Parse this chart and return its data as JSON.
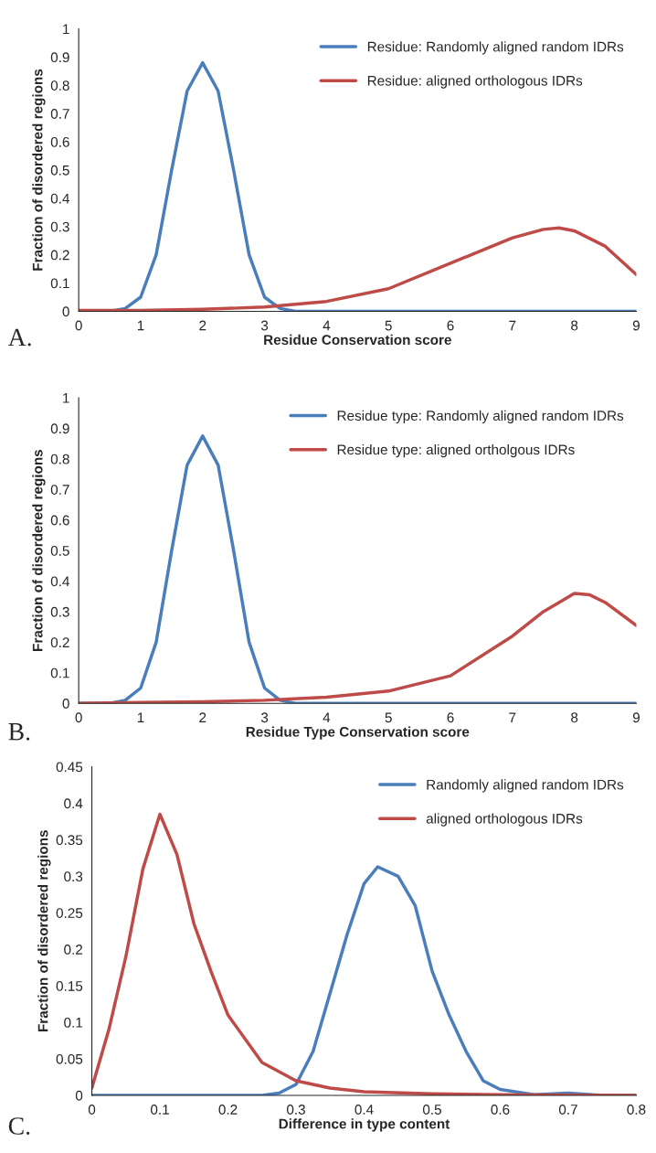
{
  "chart_data": [
    {
      "type": "line",
      "xlabel": "Residue Conservation score",
      "ylabel": "Fraction of disordered regions",
      "annotations": [
        "A."
      ],
      "xlim": [
        0,
        9
      ],
      "xticks": [
        0,
        1,
        2,
        3,
        4,
        5,
        6,
        7,
        8,
        9
      ],
      "ylim": [
        0,
        1
      ],
      "yticks": [
        0,
        0.1,
        0.2,
        0.3,
        0.4,
        0.5,
        0.6,
        0.7,
        0.8,
        0.9,
        1
      ],
      "legend": "top right",
      "grid": false,
      "marker": "none",
      "line_style": "solid",
      "series": [
        {
          "name": "Residue: Randomly aligned random IDRs",
          "color": "#4a7ebb",
          "x": [
            0,
            0.5,
            0.75,
            1,
            1.25,
            1.5,
            1.75,
            2,
            2.25,
            2.5,
            2.75,
            3,
            3.25,
            3.5,
            4,
            5,
            6,
            7,
            8,
            9
          ],
          "values": [
            0,
            0,
            0.01,
            0.05,
            0.2,
            0.5,
            0.78,
            0.88,
            0.78,
            0.5,
            0.2,
            0.05,
            0.01,
            0,
            0,
            0,
            0,
            0,
            0,
            0
          ]
        },
        {
          "name": "Residue: aligned orthologous IDRs",
          "color": "#be4b48",
          "x": [
            0,
            1,
            2,
            3,
            4,
            5,
            6,
            7,
            7.5,
            7.75,
            8,
            8.5,
            9
          ],
          "values": [
            0.003,
            0.003,
            0.007,
            0.015,
            0.035,
            0.08,
            0.17,
            0.26,
            0.29,
            0.295,
            0.285,
            0.23,
            0.13
          ]
        }
      ]
    },
    {
      "type": "line",
      "xlabel": "Residue Type Conservation score",
      "ylabel": "Fraction of disordered regions",
      "annotations": [
        "B."
      ],
      "xlim": [
        0,
        9
      ],
      "xticks": [
        0,
        1,
        2,
        3,
        4,
        5,
        6,
        7,
        8,
        9
      ],
      "ylim": [
        0,
        1
      ],
      "yticks": [
        0,
        0.1,
        0.2,
        0.3,
        0.4,
        0.5,
        0.6,
        0.7,
        0.8,
        0.9,
        1
      ],
      "legend": "top right",
      "grid": false,
      "marker": "none",
      "line_style": "solid",
      "series": [
        {
          "name": "Residue type: Randomly aligned random IDRs",
          "color": "#4a7ebb",
          "x": [
            0,
            0.5,
            0.75,
            1,
            1.25,
            1.5,
            1.75,
            2,
            2.25,
            2.5,
            2.75,
            3,
            3.25,
            3.5,
            4,
            5,
            6,
            7,
            8,
            9
          ],
          "values": [
            0,
            0,
            0.01,
            0.05,
            0.2,
            0.5,
            0.78,
            0.875,
            0.78,
            0.5,
            0.2,
            0.05,
            0.01,
            0,
            0,
            0,
            0,
            0,
            0,
            0
          ]
        },
        {
          "name": "Residue type: aligned ortholgous IDRs",
          "color": "#be4b48",
          "x": [
            0,
            1,
            2,
            3,
            4,
            5,
            6,
            7,
            7.5,
            8,
            8.25,
            8.5,
            9
          ],
          "values": [
            0,
            0.003,
            0.005,
            0.01,
            0.02,
            0.04,
            0.09,
            0.22,
            0.3,
            0.36,
            0.355,
            0.33,
            0.255
          ]
        }
      ]
    },
    {
      "type": "line",
      "xlabel": "Difference in type content",
      "ylabel": "Fraction of disordered regions",
      "annotations": [
        "C."
      ],
      "xlim": [
        0,
        0.8
      ],
      "xticks": [
        0,
        0.1,
        0.2,
        0.3,
        0.4,
        0.5,
        0.6,
        0.7,
        0.8
      ],
      "ylim": [
        0,
        0.45
      ],
      "yticks": [
        0,
        0.05,
        0.1,
        0.15,
        0.2,
        0.25,
        0.3,
        0.35,
        0.4,
        0.45
      ],
      "legend": "top right",
      "grid": false,
      "marker": "none",
      "line_style": "solid",
      "series": [
        {
          "name": "Randomly aligned random IDRs",
          "color": "#4a7ebb",
          "x": [
            0,
            0.25,
            0.275,
            0.3,
            0.325,
            0.35,
            0.375,
            0.4,
            0.42,
            0.45,
            0.475,
            0.5,
            0.525,
            0.55,
            0.575,
            0.6,
            0.65,
            0.7,
            0.75,
            0.8
          ],
          "values": [
            0,
            0,
            0.003,
            0.015,
            0.06,
            0.14,
            0.22,
            0.29,
            0.313,
            0.3,
            0.26,
            0.17,
            0.11,
            0.06,
            0.02,
            0.008,
            0.001,
            0.003,
            0,
            0
          ]
        },
        {
          "name": "aligned orthologous IDRs",
          "color": "#be4b48",
          "x": [
            0,
            0.025,
            0.05,
            0.075,
            0.1,
            0.125,
            0.15,
            0.175,
            0.2,
            0.25,
            0.3,
            0.35,
            0.4,
            0.5,
            0.6,
            0.8
          ],
          "values": [
            0.01,
            0.09,
            0.19,
            0.31,
            0.385,
            0.33,
            0.235,
            0.17,
            0.11,
            0.045,
            0.02,
            0.01,
            0.005,
            0.002,
            0.001,
            0
          ]
        }
      ]
    }
  ]
}
